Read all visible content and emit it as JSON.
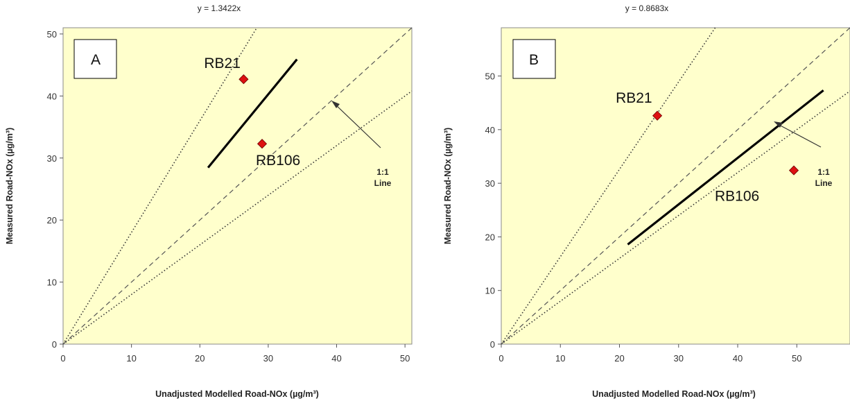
{
  "chart_data": [
    {
      "type": "scatter",
      "panel_label": "A",
      "equation": "y = 1.3422x",
      "xlabel": "Unadjusted Modelled Road-NOx (µg/m³)",
      "ylabel": "Measured Road-NOx (µg/m³)",
      "xlim": [
        0,
        51
      ],
      "ylim": [
        0,
        51
      ],
      "xticks": [
        "0",
        "10",
        "20",
        "30",
        "40",
        "50"
      ],
      "yticks": [
        "0",
        "10",
        "20",
        "30",
        "40",
        "50"
      ],
      "background": "#ffffcc",
      "points": [
        {
          "label": "RB21",
          "x": 26.4,
          "y": 42.7,
          "color": "#dd1111"
        },
        {
          "label": "RB106",
          "x": 29.1,
          "y": 32.3,
          "color": "#dd1111"
        }
      ],
      "fit_line": {
        "slope": 1.3422,
        "x_range": [
          21.2,
          34.2
        ]
      },
      "one_to_one_label": [
        "1:1",
        "Line"
      ],
      "envelope_slopes": [
        1.8,
        0.8
      ]
    },
    {
      "type": "scatter",
      "panel_label": "B",
      "equation": "y = 0.8683x",
      "xlabel": "Unadjusted Modelled Road-NOx (µg/m³)",
      "ylabel": "Measured Road-NOx (µg/m³)",
      "xlim": [
        0,
        59
      ],
      "ylim": [
        0,
        59
      ],
      "xticks": [
        "0",
        "10",
        "20",
        "30",
        "40",
        "50"
      ],
      "yticks": [
        "0",
        "10",
        "20",
        "30",
        "40",
        "50"
      ],
      "background": "#ffffcc",
      "points": [
        {
          "label": "RB21",
          "x": 26.4,
          "y": 42.6,
          "color": "#dd1111"
        },
        {
          "label": "RB106",
          "x": 49.5,
          "y": 32.4,
          "color": "#dd1111"
        }
      ],
      "fit_line": {
        "slope": 0.8683,
        "x_range": [
          21.4,
          54.5
        ]
      },
      "one_to_one_label": [
        "1:1",
        "Line"
      ],
      "envelope_slopes": [
        1.63,
        0.8
      ]
    }
  ]
}
